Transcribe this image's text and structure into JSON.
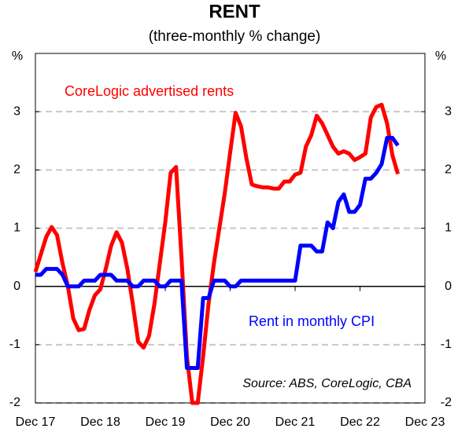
{
  "chart_data": {
    "type": "line",
    "title": "RENT",
    "subtitle": "(three-monthly % change)",
    "y_unit_left": "%",
    "y_unit_right": "%",
    "source": "Source: ABS, CoreLogic, CBA",
    "categories": [
      "Dec 17",
      null,
      null,
      null,
      null,
      null,
      null,
      null,
      null,
      null,
      null,
      null,
      "Dec 18",
      null,
      null,
      null,
      null,
      null,
      null,
      null,
      null,
      null,
      null,
      null,
      "Dec 19",
      null,
      null,
      null,
      null,
      null,
      null,
      null,
      null,
      null,
      null,
      null,
      "Dec 20",
      null,
      null,
      null,
      null,
      null,
      null,
      null,
      null,
      null,
      null,
      null,
      "Dec 21",
      null,
      null,
      null,
      null,
      null,
      null,
      null,
      null,
      null,
      null,
      null,
      "Dec 22",
      null,
      null,
      null,
      null,
      null,
      null,
      null,
      null,
      null,
      null,
      null,
      "Dec 23"
    ],
    "series": [
      {
        "name": "CoreLogic advertised rents",
        "color": "#ff0000",
        "values": [
          0.25,
          0.55,
          0.85,
          1.02,
          0.88,
          0.4,
          0.0,
          -0.55,
          -0.75,
          -0.73,
          -0.4,
          -0.15,
          -0.05,
          0.3,
          0.7,
          0.93,
          0.75,
          0.3,
          -0.3,
          -0.95,
          -1.05,
          -0.85,
          -0.3,
          0.4,
          1.1,
          1.95,
          2.05,
          0.5,
          -1.2,
          -2.0,
          -2.0,
          -1.2,
          -0.3,
          0.4,
          1.0,
          1.6,
          2.3,
          2.98,
          2.75,
          2.2,
          1.75,
          1.72,
          1.7,
          1.7,
          1.68,
          1.68,
          1.8,
          1.8,
          1.92,
          1.95,
          2.4,
          2.6,
          2.93,
          2.8,
          2.6,
          2.4,
          2.28,
          2.32,
          2.28,
          2.17,
          2.22,
          2.28,
          2.9,
          3.08,
          3.12,
          2.8,
          2.25,
          1.93,
          null,
          null,
          null,
          null,
          null
        ]
      },
      {
        "name": "Rent in monthly CPI",
        "color": "#0000ff",
        "values": [
          0.2,
          0.2,
          0.3,
          0.3,
          0.3,
          0.2,
          0.0,
          0.0,
          0.0,
          0.1,
          0.1,
          0.1,
          0.2,
          0.2,
          0.2,
          0.1,
          0.1,
          0.1,
          0.0,
          0.0,
          0.1,
          0.1,
          0.1,
          0.0,
          0.0,
          0.1,
          0.1,
          0.1,
          -1.4,
          -1.4,
          -1.4,
          -0.2,
          -0.2,
          0.1,
          0.1,
          0.1,
          0.0,
          0.0,
          0.1,
          0.1,
          0.1,
          0.1,
          0.1,
          0.1,
          0.1,
          0.1,
          0.1,
          0.1,
          0.1,
          0.7,
          0.7,
          0.7,
          0.6,
          0.6,
          1.1,
          1.0,
          1.45,
          1.58,
          1.28,
          1.28,
          1.4,
          1.85,
          1.85,
          1.95,
          2.1,
          2.55,
          2.55,
          2.42,
          null,
          null,
          null,
          null,
          null
        ]
      }
    ],
    "ylim": [
      -2,
      4
    ],
    "yticks": [
      -2,
      -1,
      0,
      1,
      2,
      3
    ],
    "grid": true
  }
}
